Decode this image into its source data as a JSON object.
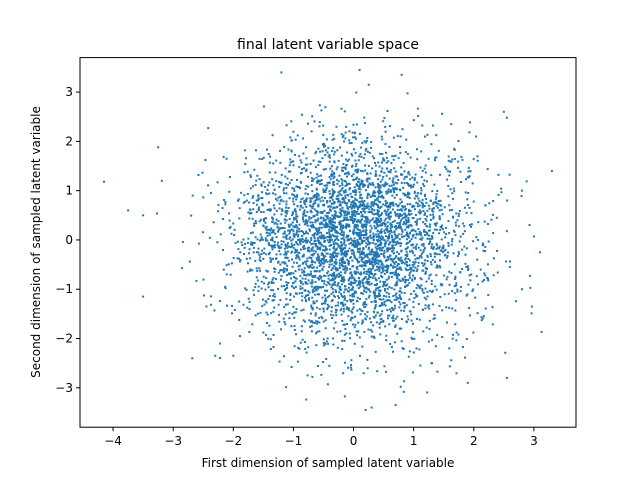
{
  "chart_data": {
    "type": "scatter",
    "title": "final latent variable space",
    "xlabel": "First dimension of sampled latent variable",
    "ylabel": "Second dimension of sampled latent variable",
    "xlim": [
      -4.55,
      3.7
    ],
    "ylim": [
      -3.8,
      3.7
    ],
    "x_ticks": [
      -4,
      -3,
      -2,
      -1,
      0,
      1,
      2,
      3
    ],
    "y_ticks": [
      -3,
      -2,
      -1,
      0,
      1,
      2,
      3
    ],
    "grid": false,
    "legend": "none",
    "point_color": "#1f77b4",
    "sample": {
      "count": 4000,
      "distribution": "standard-normal",
      "x_std": 0.95,
      "y_std": 0.98,
      "seed": 7
    },
    "notable_points": [
      {
        "x": -4.15,
        "y": 1.18
      },
      {
        "x": -3.75,
        "y": 0.6
      },
      {
        "x": -3.5,
        "y": 0.5
      },
      {
        "x": -3.5,
        "y": -1.15
      },
      {
        "x": -3.25,
        "y": 1.88
      },
      {
        "x": 3.3,
        "y": 1.4
      },
      {
        "x": 2.8,
        "y": 1.0
      },
      {
        "x": 3.0,
        "y": 0.07
      },
      {
        "x": 3.1,
        "y": -0.25
      },
      {
        "x": 2.8,
        "y": -1.0
      },
      {
        "x": 2.5,
        "y": 2.6
      },
      {
        "x": 2.55,
        "y": 2.48
      },
      {
        "x": 2.55,
        "y": -2.8
      },
      {
        "x": 1.9,
        "y": -2.9
      },
      {
        "x": -1.2,
        "y": 3.4
      },
      {
        "x": 0.1,
        "y": 3.45
      },
      {
        "x": 0.8,
        "y": 3.35
      },
      {
        "x": 0.2,
        "y": -3.45
      },
      {
        "x": 0.3,
        "y": -3.4
      },
      {
        "x": 0.7,
        "y": -3.35
      },
      {
        "x": -2.3,
        "y": -2.35
      },
      {
        "x": -2.0,
        "y": -2.35
      }
    ]
  }
}
